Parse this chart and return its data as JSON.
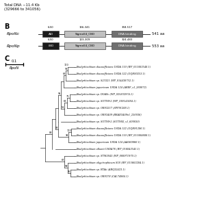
{
  "title_top": "Total DNA ~11.4 Kb\n(329666 to 341056)",
  "section_B_label": "B",
  "section_C_label": "C",
  "rponc_label": "RpoNc",
  "rponp_label": "RpoNp",
  "rponc_domains": [
    {
      "name": "AID",
      "range": "6-50",
      "xf": 0.195,
      "wf": 0.075,
      "color": "#1a1a1a",
      "text_color": "white"
    },
    {
      "name": "Sigma54_CBD",
      "range": "156-341",
      "xf": 0.295,
      "wf": 0.185,
      "color": "#c0c0c0",
      "text_color": "black"
    },
    {
      "name": "DNA binding",
      "range": "358-517",
      "xf": 0.51,
      "wf": 0.14,
      "color": "#707070",
      "text_color": "white"
    }
  ],
  "rponc_length": "541 aa",
  "rponp_domains": [
    {
      "name": "LBD",
      "range": "6-50",
      "xf": 0.195,
      "wf": 0.075,
      "color": "#1a1a1a",
      "text_color": "white"
    },
    {
      "name": "Sigma54_CBD",
      "range": "123-309",
      "xf": 0.295,
      "wf": 0.185,
      "color": "#c0c0c0",
      "text_color": "black"
    },
    {
      "name": "DNA binding",
      "range": "324-483",
      "xf": 0.51,
      "wf": 0.14,
      "color": "#707070",
      "text_color": "white"
    }
  ],
  "rponp_length": "553 aa",
  "scale_bar_label": "0.1",
  "scale_label": "RpoN",
  "taxa_names": [
    "Bradyrhizobium diazoefficiens USDA 110 (WP_011083548.1)",
    "Bradyrhizobium diazoefficiens USDA 122 (UQH90253.1)",
    "Bradyrhizobium sp. S23321 (WP_014438752.1)",
    "Bradyrhizobium japonicum USDA 124 (AREF_x1_260072)",
    "Bradyrhizobium sp. DOA9c (WP_025832974.1)",
    "Bradyrhizobium sp. SUTN9-2 (WP_109141884.1)",
    "Bradyrhizobium sp. ORS3257 (SPP91288.1)",
    "Bradyrhizobium sp. ORS3409 (BRAD3409v1_230036)",
    "Bradyrhizobium sp. SUTN9-2 (SUTN92_x1_600030)",
    "Bradyrhizobium diazoefficiens USDA 122 (UQH91286.1)",
    "Bradyrhizobium diazoefficiens USDA 110 (WP_011084688.1)",
    "Bradyrhizobium japonicum USDA 124 (AAG60866.1)",
    "Bradyrhizobium elkanii USDA76 (WP_016843545.1)",
    "Bradyrhizobium sp. STM3843 (WP_008971970.1)",
    "Bradyrhizobium oligotrophicum S58 (WP_015663284.1)",
    "Bradyrhizobium sp. RTAii (ABQ32423.1)",
    "Bradyrhizobium sp. ORS378 (CAL74984.1)"
  ],
  "bg_color": "#ffffff",
  "text_color": "#000000",
  "line_color": "#333333"
}
